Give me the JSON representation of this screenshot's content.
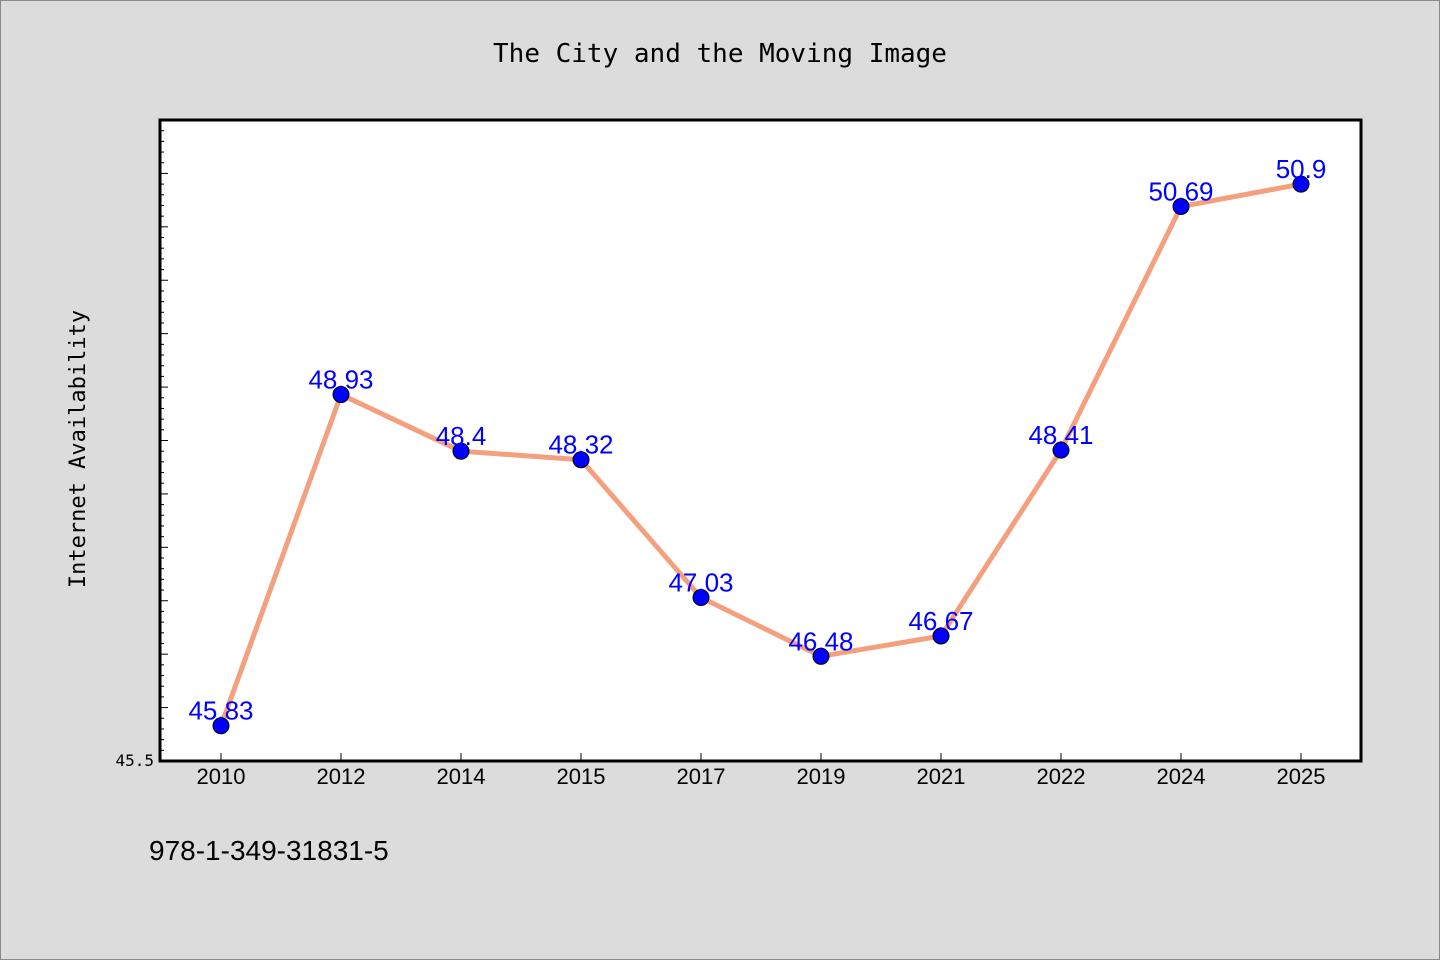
{
  "caption": "978-1-349-31831-5",
  "chart_data": {
    "type": "line",
    "title": "The City and the Moving Image",
    "xlabel": "",
    "ylabel": "Internet Availability",
    "categories": [
      "2010",
      "2012",
      "2014",
      "2015",
      "2017",
      "2019",
      "2021",
      "2022",
      "2024",
      "2025"
    ],
    "series": [
      {
        "values": [
          45.83,
          48.93,
          48.4,
          48.32,
          47.03,
          46.48,
          46.67,
          48.41,
          50.69,
          50.9
        ]
      }
    ],
    "data_labels": [
      "45.83",
      "48.93",
      "48.4",
      "48.32",
      "47.03",
      "46.48",
      "46.67",
      "48.41",
      "50.69",
      "50.9"
    ],
    "ylim": [
      45.5,
      51.5
    ],
    "y_tick_labels": [
      "45.5"
    ],
    "grid": false,
    "colors": {
      "line": "#f4a07e",
      "marker": "#0000ff",
      "data_label": "#0000ff"
    }
  }
}
